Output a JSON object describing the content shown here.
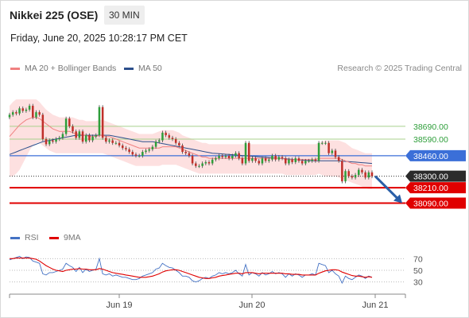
{
  "header": {
    "title": "Nikkei 225 (OSE)",
    "timeframe": "30 MIN",
    "datetime": "Friday, June 20, 2025 10:28:17 PM CET",
    "credit": "Research © 2025 Trading Central"
  },
  "legend": {
    "bollinger": {
      "label": "MA 20 + Bollinger Bands",
      "color": "#f08080"
    },
    "ma50": {
      "label": "MA 50",
      "color": "#2c4f8c"
    },
    "rsi": {
      "label": "RSI",
      "color": "#4472c4"
    },
    "rsi_ma": {
      "label": "9MA",
      "color": "#e00000"
    }
  },
  "colors": {
    "up": "#2e9e3a",
    "down": "#c0302a",
    "resistance": "#a8d08d",
    "pivot": "#3b6fd8",
    "support": "#e00000",
    "arrow": "#2a5fa8",
    "band_fill": "#fde0e0"
  },
  "chart_data": [
    {
      "type": "candlestick",
      "name": "price",
      "x_ticks": [
        "Jun 19",
        "Jun 20",
        "Jun 21"
      ],
      "ylim": [
        38000,
        38900
      ],
      "levels": [
        {
          "value": 38690.0,
          "label": "38690.00",
          "kind": "resistance"
        },
        {
          "value": 38590.0,
          "label": "38590.00",
          "kind": "resistance"
        },
        {
          "value": 38460.0,
          "label": "38460.00",
          "kind": "pivot"
        },
        {
          "value": 38300.0,
          "label": "38300.00",
          "kind": "last"
        },
        {
          "value": 38210.0,
          "label": "38210.00",
          "kind": "support"
        },
        {
          "value": 38090.0,
          "label": "38090.00",
          "kind": "support"
        }
      ],
      "close": [
        38780,
        38800,
        38790,
        38830,
        38810,
        38820,
        38850,
        38760,
        38800,
        38780,
        38590,
        38550,
        38580,
        38570,
        38590,
        38600,
        38630,
        38750,
        38690,
        38650,
        38600,
        38650,
        38570,
        38620,
        38580,
        38610,
        38620,
        38840,
        38600,
        38570,
        38580,
        38560,
        38560,
        38540,
        38520,
        38510,
        38490,
        38470,
        38460,
        38460,
        38490,
        38500,
        38510,
        38530,
        38570,
        38580,
        38640,
        38620,
        38600,
        38590,
        38560,
        38540,
        38490,
        38480,
        38460,
        38400,
        38380,
        38380,
        38400,
        38410,
        38400,
        38430,
        38440,
        38460,
        38450,
        38460,
        38440,
        38460,
        38480,
        38440,
        38400,
        38560,
        38420,
        38440,
        38420,
        38400,
        38440,
        38420,
        38430,
        38460,
        38430,
        38450,
        38440,
        38400,
        38430,
        38410,
        38440,
        38420,
        38400,
        38420,
        38420,
        38430,
        38420,
        38560,
        38560,
        38560,
        38480,
        38500,
        38450,
        38420,
        38260,
        38340,
        38300,
        38290,
        38310,
        38350,
        38330,
        38290,
        38330,
        38300
      ],
      "open": [
        38760,
        38780,
        38800,
        38790,
        38830,
        38810,
        38820,
        38850,
        38760,
        38800,
        38780,
        38590,
        38550,
        38580,
        38570,
        38590,
        38600,
        38630,
        38750,
        38690,
        38650,
        38600,
        38650,
        38570,
        38620,
        38580,
        38610,
        38620,
        38840,
        38600,
        38570,
        38580,
        38560,
        38560,
        38540,
        38520,
        38510,
        38490,
        38470,
        38460,
        38460,
        38490,
        38500,
        38510,
        38530,
        38570,
        38580,
        38640,
        38620,
        38600,
        38590,
        38560,
        38540,
        38490,
        38480,
        38460,
        38400,
        38380,
        38380,
        38400,
        38410,
        38400,
        38430,
        38440,
        38460,
        38450,
        38460,
        38440,
        38460,
        38480,
        38440,
        38400,
        38560,
        38420,
        38440,
        38420,
        38400,
        38440,
        38420,
        38430,
        38460,
        38430,
        38450,
        38440,
        38400,
        38430,
        38410,
        38440,
        38420,
        38400,
        38420,
        38420,
        38430,
        38420,
        38560,
        38560,
        38560,
        38480,
        38500,
        38450,
        38420,
        38260,
        38340,
        38300,
        38290,
        38310,
        38350,
        38330,
        38290,
        38330
      ],
      "ma20": [
        38610,
        38640,
        38670,
        38700,
        38720,
        38740,
        38750,
        38760,
        38760,
        38750,
        38730,
        38710,
        38690,
        38670,
        38660,
        38650,
        38650,
        38650,
        38650,
        38640,
        38630,
        38630,
        38620,
        38620,
        38610,
        38610,
        38610,
        38620,
        38620,
        38610,
        38610,
        38600,
        38590,
        38580,
        38570,
        38560,
        38550,
        38540,
        38530,
        38520,
        38520,
        38520,
        38520,
        38520,
        38520,
        38520,
        38530,
        38530,
        38530,
        38530,
        38530,
        38520,
        38510,
        38500,
        38490,
        38480,
        38470,
        38460,
        38450,
        38450,
        38440,
        38440,
        38440,
        38440,
        38440,
        38440,
        38440,
        38440,
        38440,
        38440,
        38440,
        38440,
        38440,
        38440,
        38440,
        38440,
        38440,
        38440,
        38440,
        38440,
        38440,
        38440,
        38440,
        38430,
        38430,
        38430,
        38430,
        38430,
        38430,
        38430,
        38430,
        38430,
        38430,
        38440,
        38440,
        38440,
        38440,
        38440,
        38440,
        38440,
        38430,
        38420,
        38410,
        38400,
        38400,
        38390,
        38390,
        38380,
        38380,
        38380
      ],
      "ma50": [
        38470,
        38480,
        38490,
        38500,
        38510,
        38520,
        38530,
        38540,
        38550,
        38560,
        38570,
        38575,
        38580,
        38585,
        38590,
        38595,
        38600,
        38605,
        38610,
        38615,
        38620,
        38620,
        38620,
        38620,
        38620,
        38620,
        38620,
        38620,
        38620,
        38620,
        38620,
        38615,
        38610,
        38605,
        38600,
        38595,
        38590,
        38585,
        38580,
        38575,
        38570,
        38570,
        38570,
        38570,
        38565,
        38560,
        38555,
        38550,
        38545,
        38540,
        38535,
        38530,
        38525,
        38520,
        38515,
        38510,
        38505,
        38500,
        38495,
        38490,
        38485,
        38480,
        38478,
        38476,
        38474,
        38472,
        38470,
        38468,
        38466,
        38464,
        38462,
        38460,
        38458,
        38456,
        38454,
        38452,
        38450,
        38448,
        38446,
        38444,
        38442,
        38440,
        38438,
        38436,
        38434,
        38432,
        38430,
        38428,
        38426,
        38424,
        38422,
        38420,
        38420,
        38420,
        38420,
        38420,
        38420,
        38420,
        38420,
        38420,
        38418,
        38416,
        38414,
        38412,
        38410,
        38408,
        38406,
        38404,
        38402,
        38400
      ],
      "bb_upper": [
        38850,
        38880,
        38900,
        38900,
        38900,
        38900,
        38900,
        38900,
        38900,
        38880,
        38850,
        38820,
        38800,
        38780,
        38770,
        38760,
        38760,
        38760,
        38760,
        38760,
        38750,
        38740,
        38740,
        38730,
        38730,
        38730,
        38730,
        38740,
        38740,
        38730,
        38720,
        38710,
        38700,
        38690,
        38680,
        38670,
        38660,
        38650,
        38640,
        38630,
        38630,
        38630,
        38630,
        38630,
        38640,
        38650,
        38660,
        38660,
        38660,
        38660,
        38650,
        38640,
        38620,
        38610,
        38600,
        38590,
        38580,
        38570,
        38560,
        38560,
        38550,
        38550,
        38550,
        38550,
        38550,
        38550,
        38550,
        38550,
        38550,
        38550,
        38550,
        38550,
        38550,
        38550,
        38550,
        38550,
        38550,
        38550,
        38550,
        38550,
        38550,
        38550,
        38550,
        38550,
        38550,
        38550,
        38550,
        38550,
        38550,
        38550,
        38550,
        38550,
        38550,
        38560,
        38570,
        38580,
        38580,
        38580,
        38580,
        38580,
        38570,
        38560,
        38540,
        38520,
        38510,
        38500,
        38490,
        38480,
        38480,
        38480
      ],
      "bb_lower": [
        38300,
        38300,
        38320,
        38350,
        38400,
        38450,
        38500,
        38540,
        38560,
        38560,
        38540,
        38520,
        38500,
        38490,
        38480,
        38480,
        38480,
        38480,
        38480,
        38480,
        38480,
        38480,
        38480,
        38480,
        38480,
        38480,
        38480,
        38480,
        38480,
        38470,
        38460,
        38450,
        38440,
        38430,
        38420,
        38410,
        38400,
        38390,
        38380,
        38380,
        38380,
        38380,
        38380,
        38380,
        38380,
        38380,
        38390,
        38390,
        38390,
        38390,
        38390,
        38380,
        38370,
        38360,
        38350,
        38340,
        38330,
        38320,
        38320,
        38320,
        38320,
        38320,
        38320,
        38320,
        38320,
        38320,
        38320,
        38320,
        38320,
        38320,
        38320,
        38320,
        38320,
        38320,
        38320,
        38320,
        38320,
        38320,
        38320,
        38320,
        38320,
        38320,
        38320,
        38310,
        38310,
        38310,
        38310,
        38310,
        38310,
        38310,
        38310,
        38310,
        38310,
        38320,
        38310,
        38300,
        38300,
        38300,
        38300,
        38290,
        38280,
        38270,
        38260,
        38250,
        38240,
        38230,
        38220,
        38210,
        38200,
        38200
      ],
      "forecast_arrow": {
        "from": 38300,
        "to": 38090
      }
    },
    {
      "type": "line",
      "name": "rsi",
      "ylim": [
        20,
        80
      ],
      "y_ticks": [
        70,
        50,
        30
      ],
      "series": [
        {
          "name": "RSI",
          "values": [
            68,
            70,
            72,
            74,
            70,
            73,
            72,
            66,
            64,
            62,
            44,
            42,
            46,
            46,
            48,
            50,
            52,
            62,
            58,
            55,
            48,
            55,
            46,
            52,
            48,
            50,
            52,
            70,
            44,
            42,
            44,
            40,
            42,
            40,
            38,
            38,
            36,
            34,
            34,
            36,
            40,
            42,
            44,
            46,
            52,
            54,
            62,
            58,
            55,
            54,
            50,
            46,
            40,
            40,
            38,
            32,
            30,
            32,
            36,
            38,
            36,
            40,
            42,
            46,
            44,
            46,
            44,
            46,
            50,
            44,
            40,
            60,
            42,
            46,
            44,
            40,
            46,
            42,
            44,
            48,
            44,
            46,
            44,
            38,
            44,
            40,
            44,
            42,
            38,
            42,
            42,
            44,
            42,
            62,
            60,
            58,
            46,
            50,
            44,
            40,
            28,
            40,
            36,
            34,
            38,
            42,
            40,
            36,
            40,
            38
          ]
        },
        {
          "name": "9MA",
          "values": [
            70,
            70,
            71,
            71,
            71,
            71,
            71,
            70,
            69,
            66,
            62,
            58,
            55,
            52,
            50,
            49,
            48,
            50,
            51,
            52,
            52,
            53,
            52,
            52,
            51,
            51,
            51,
            53,
            52,
            50,
            48,
            46,
            45,
            44,
            43,
            42,
            41,
            40,
            39,
            38,
            38,
            38,
            39,
            40,
            42,
            44,
            47,
            49,
            50,
            51,
            51,
            50,
            48,
            46,
            44,
            42,
            40,
            38,
            37,
            36,
            36,
            37,
            38,
            40,
            41,
            42,
            43,
            44,
            45,
            45,
            44,
            46,
            46,
            46,
            45,
            44,
            45,
            45,
            45,
            45,
            45,
            45,
            45,
            44,
            44,
            43,
            43,
            43,
            42,
            42,
            42,
            42,
            42,
            45,
            47,
            49,
            50,
            51,
            51,
            50,
            47,
            45,
            43,
            41,
            40,
            40,
            39,
            38,
            39,
            38
          ]
        }
      ]
    }
  ]
}
